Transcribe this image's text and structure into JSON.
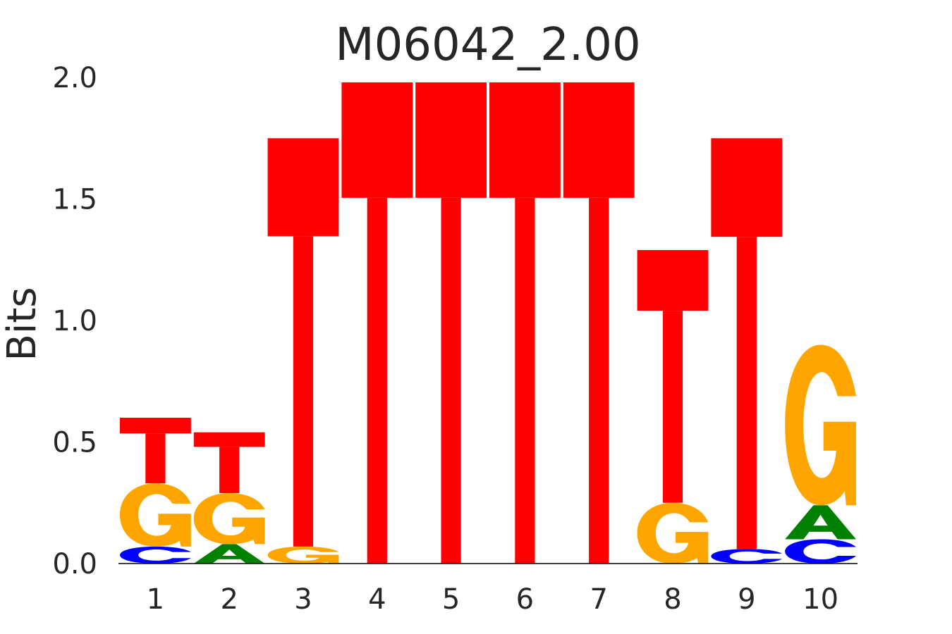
{
  "chart_data": {
    "type": "sequence-logo",
    "title": "M06042_2.00",
    "xlabel": "",
    "ylabel": "Bits",
    "ylim": [
      0,
      2.0
    ],
    "yticks": [
      "0.0",
      "0.5",
      "1.0",
      "1.5",
      "2.0"
    ],
    "ytick_values": [
      0,
      0.5,
      1.0,
      1.5,
      2.0
    ],
    "positions": [
      "1",
      "2",
      "3",
      "4",
      "5",
      "6",
      "7",
      "8",
      "9",
      "10"
    ],
    "colors": {
      "A": "#008000",
      "C": "#0000ff",
      "G": "#ffa500",
      "T": "#ff0000"
    },
    "columns": [
      [
        {
          "letter": "C",
          "bits": 0.07
        },
        {
          "letter": "G",
          "bits": 0.26
        },
        {
          "letter": "T",
          "bits": 0.27
        }
      ],
      [
        {
          "letter": "A",
          "bits": 0.08
        },
        {
          "letter": "G",
          "bits": 0.21
        },
        {
          "letter": "T",
          "bits": 0.25
        }
      ],
      [
        {
          "letter": "G",
          "bits": 0.07
        },
        {
          "letter": "T",
          "bits": 1.68
        }
      ],
      [
        {
          "letter": "T",
          "bits": 1.98
        }
      ],
      [
        {
          "letter": "T",
          "bits": 1.98
        }
      ],
      [
        {
          "letter": "T",
          "bits": 1.98
        }
      ],
      [
        {
          "letter": "T",
          "bits": 1.98
        }
      ],
      [
        {
          "letter": "G",
          "bits": 0.25
        },
        {
          "letter": "T",
          "bits": 1.04
        }
      ],
      [
        {
          "letter": "C",
          "bits": 0.06
        },
        {
          "letter": "T",
          "bits": 1.69
        }
      ],
      [
        {
          "letter": "C",
          "bits": 0.1
        },
        {
          "letter": "A",
          "bits": 0.14
        },
        {
          "letter": "G",
          "bits": 0.66
        }
      ]
    ]
  }
}
